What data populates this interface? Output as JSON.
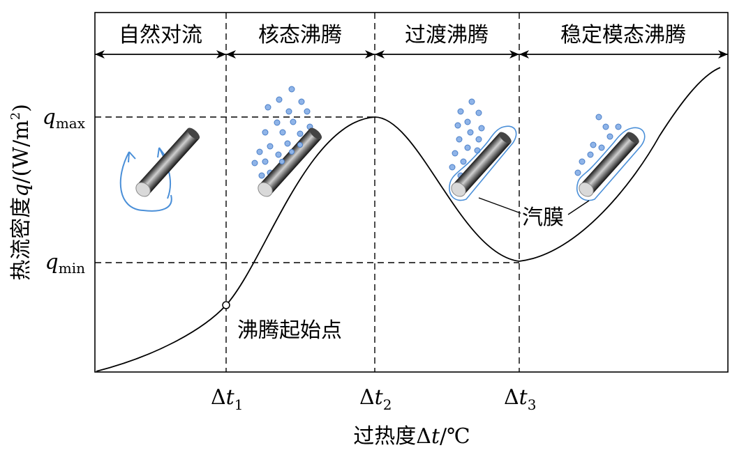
{
  "regimes": [
    "自然对流",
    "核态沸腾",
    "过渡沸腾",
    "稳定模态沸腾"
  ],
  "y_axis": {
    "text": "热流密度",
    "var": "q",
    "unit_open": "/(W/m",
    "unit_sup": "2",
    "unit_close": ")"
  },
  "x_axis": {
    "text": "过热度",
    "var": "Δ",
    "var_it": "t",
    "unit": "/℃"
  },
  "y_ticks": [
    {
      "base": "q",
      "sub": "max"
    },
    {
      "base": "q",
      "sub": "min"
    }
  ],
  "x_ticks": [
    {
      "base": "Δ",
      "it": "t",
      "sub": "1"
    },
    {
      "base": "Δ",
      "it": "t",
      "sub": "2"
    },
    {
      "base": "Δ",
      "it": "t",
      "sub": "3"
    }
  ],
  "annotations": {
    "onset": "沸腾起始点",
    "vapor_film": "汽膜"
  },
  "colors": {
    "line": "#000000",
    "bubble": "#8fb4e8",
    "bubble_stroke": "#4a7fc8",
    "film": "#4a8fd8"
  }
}
